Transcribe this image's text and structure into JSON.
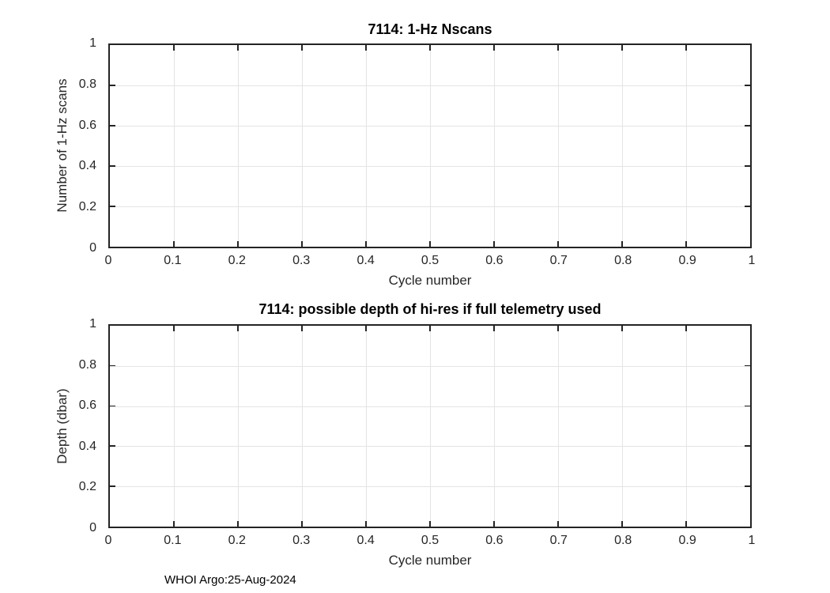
{
  "figure": {
    "footer": "WHOI Argo:25-Aug-2024"
  },
  "chart_data": [
    {
      "type": "line",
      "title": "7114: 1-Hz Nscans",
      "xlabel": "Cycle number",
      "ylabel": "Number of 1-Hz scans",
      "xlim": [
        0,
        1
      ],
      "ylim": [
        0,
        1
      ],
      "xticks": [
        "0",
        "0.1",
        "0.2",
        "0.3",
        "0.4",
        "0.5",
        "0.6",
        "0.7",
        "0.8",
        "0.9",
        "1"
      ],
      "yticks": [
        "0",
        "0.2",
        "0.4",
        "0.6",
        "0.8",
        "1"
      ],
      "grid": true,
      "legend": null,
      "series": []
    },
    {
      "type": "line",
      "title": "7114: possible depth of hi-res if full telemetry used",
      "xlabel": "Cycle number",
      "ylabel": "Depth (dbar)",
      "xlim": [
        0,
        1
      ],
      "ylim": [
        0,
        1
      ],
      "xticks": [
        "0",
        "0.1",
        "0.2",
        "0.3",
        "0.4",
        "0.5",
        "0.6",
        "0.7",
        "0.8",
        "0.9",
        "1"
      ],
      "yticks": [
        "0",
        "0.2",
        "0.4",
        "0.6",
        "0.8",
        "1"
      ],
      "grid": true,
      "legend": null,
      "series": []
    }
  ]
}
